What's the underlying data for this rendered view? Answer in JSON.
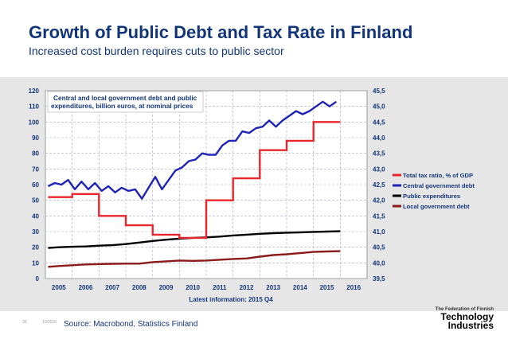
{
  "header": {
    "title": "Growth of Public Debt and Tax Rate in Finland",
    "subtitle": "Increased cost burden requires cuts to public sector"
  },
  "footer": {
    "page": "26",
    "date": "10/2016",
    "source": "Source: Macrobond, Statistics Finland",
    "logo_top": "The Federation of Finnish",
    "logo_mid": "Technology",
    "logo_bottom": "Industries"
  },
  "colors": {
    "title": "#12357a",
    "tax": "#e8262b",
    "central": "#1f23b5",
    "public": "#000000",
    "local": "#8b1a1a",
    "band": "#e6e6e6"
  },
  "chart_data": {
    "type": "line",
    "title": "Growth of Public Debt and Tax Rate in Finland",
    "annotation": "Central and local government debt and public expenditures, billion euros, at nominal prices",
    "xlabel": "Latest information: 2015 Q4",
    "xlim": [
      2004.5,
      2016.5
    ],
    "x_ticks": [
      "2005",
      "2006",
      "2007",
      "2008",
      "2009",
      "2010",
      "2011",
      "2012",
      "2013",
      "2014",
      "2015",
      "2016"
    ],
    "ylim_left": [
      0,
      120
    ],
    "y_ticks_left": [
      "0",
      "10",
      "20",
      "30",
      "40",
      "50",
      "60",
      "70",
      "80",
      "90",
      "100",
      "110",
      "120"
    ],
    "ylim_right": [
      39.5,
      45.5
    ],
    "y_ticks_right": [
      "39,5",
      "40,0",
      "40,5",
      "41,0",
      "41,5",
      "42,0",
      "42,5",
      "43,0",
      "43,5",
      "44,0",
      "44,5",
      "45,0",
      "45,5"
    ],
    "legend_position": "right",
    "series": [
      {
        "name": "Total tax ratio, % of GDP",
        "axis": "right",
        "color": "#e8262b",
        "step": true,
        "points": [
          [
            2004.6,
            42.1
          ],
          [
            2005.5,
            42.1
          ],
          [
            2005.5,
            42.2
          ],
          [
            2006.5,
            42.2
          ],
          [
            2006.5,
            41.5
          ],
          [
            2007.5,
            41.5
          ],
          [
            2007.5,
            41.2
          ],
          [
            2008.5,
            41.2
          ],
          [
            2008.5,
            40.9
          ],
          [
            2009.5,
            40.9
          ],
          [
            2009.5,
            40.8
          ],
          [
            2010.5,
            40.8
          ],
          [
            2010.5,
            42.0
          ],
          [
            2011.5,
            42.0
          ],
          [
            2011.5,
            42.7
          ],
          [
            2012.5,
            42.7
          ],
          [
            2012.5,
            43.6
          ],
          [
            2013.5,
            43.6
          ],
          [
            2013.5,
            43.9
          ],
          [
            2014.5,
            43.9
          ],
          [
            2014.5,
            44.5
          ],
          [
            2015.5,
            44.5
          ]
        ]
      },
      {
        "name": "Central government debt",
        "axis": "left",
        "color": "#1f23b5",
        "step": false,
        "points": [
          [
            2004.6,
            59
          ],
          [
            2004.85,
            61
          ],
          [
            2005.1,
            60
          ],
          [
            2005.35,
            63
          ],
          [
            2005.6,
            57
          ],
          [
            2005.85,
            62
          ],
          [
            2006.1,
            57
          ],
          [
            2006.35,
            61
          ],
          [
            2006.6,
            56
          ],
          [
            2006.85,
            59
          ],
          [
            2007.1,
            55
          ],
          [
            2007.35,
            58
          ],
          [
            2007.6,
            56
          ],
          [
            2007.85,
            57
          ],
          [
            2008.1,
            51
          ],
          [
            2008.35,
            58
          ],
          [
            2008.6,
            65
          ],
          [
            2008.85,
            57
          ],
          [
            2009.1,
            63
          ],
          [
            2009.35,
            69
          ],
          [
            2009.6,
            71
          ],
          [
            2009.85,
            75
          ],
          [
            2010.1,
            76
          ],
          [
            2010.35,
            80
          ],
          [
            2010.6,
            79
          ],
          [
            2010.85,
            79
          ],
          [
            2011.1,
            85
          ],
          [
            2011.35,
            88
          ],
          [
            2011.6,
            88
          ],
          [
            2011.85,
            94
          ],
          [
            2012.1,
            93
          ],
          [
            2012.35,
            96
          ],
          [
            2012.6,
            97
          ],
          [
            2012.85,
            101
          ],
          [
            2013.1,
            97
          ],
          [
            2013.35,
            101
          ],
          [
            2013.6,
            104
          ],
          [
            2013.85,
            107
          ],
          [
            2014.1,
            105
          ],
          [
            2014.35,
            107
          ],
          [
            2014.6,
            110
          ],
          [
            2014.85,
            113
          ],
          [
            2015.1,
            110
          ],
          [
            2015.35,
            113
          ]
        ]
      },
      {
        "name": "Public expenditures",
        "axis": "left",
        "color": "#000000",
        "step": false,
        "points": [
          [
            2004.6,
            19.5
          ],
          [
            2005.0,
            20
          ],
          [
            2005.5,
            20.3
          ],
          [
            2006.0,
            20.5
          ],
          [
            2006.5,
            21
          ],
          [
            2007.0,
            21.3
          ],
          [
            2007.5,
            22
          ],
          [
            2008.0,
            23
          ],
          [
            2008.5,
            24
          ],
          [
            2009.0,
            24.8
          ],
          [
            2009.5,
            25.5
          ],
          [
            2010.0,
            26
          ],
          [
            2010.5,
            26.3
          ],
          [
            2011.0,
            26.8
          ],
          [
            2011.5,
            27.5
          ],
          [
            2012.0,
            28
          ],
          [
            2012.5,
            28.6
          ],
          [
            2013.0,
            29
          ],
          [
            2013.5,
            29.3
          ],
          [
            2014.0,
            29.5
          ],
          [
            2014.5,
            29.8
          ],
          [
            2015.0,
            30
          ],
          [
            2015.5,
            30.2
          ]
        ]
      },
      {
        "name": "Local government debt",
        "axis": "left",
        "color": "#8b1a1a",
        "step": false,
        "points": [
          [
            2004.6,
            7.5
          ],
          [
            2005.0,
            8
          ],
          [
            2005.5,
            8.5
          ],
          [
            2006.0,
            9
          ],
          [
            2006.5,
            9.2
          ],
          [
            2007.0,
            9.4
          ],
          [
            2007.5,
            9.5
          ],
          [
            2008.0,
            9.5
          ],
          [
            2008.5,
            10.5
          ],
          [
            2009.0,
            11
          ],
          [
            2009.5,
            11.5
          ],
          [
            2010.0,
            11.3
          ],
          [
            2010.5,
            11.5
          ],
          [
            2011.0,
            12
          ],
          [
            2011.5,
            12.5
          ],
          [
            2012.0,
            12.8
          ],
          [
            2012.5,
            14
          ],
          [
            2013.0,
            15
          ],
          [
            2013.5,
            15.5
          ],
          [
            2014.0,
            16.2
          ],
          [
            2014.5,
            17
          ],
          [
            2015.0,
            17.3
          ],
          [
            2015.5,
            17.5
          ]
        ]
      }
    ]
  }
}
